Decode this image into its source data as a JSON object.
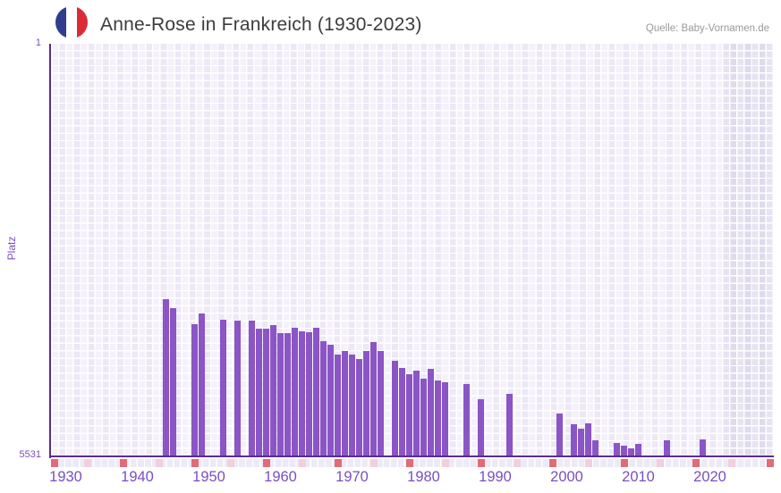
{
  "header": {
    "title": "Anne-Rose in Frankreich (1930-2023)",
    "source": "Quelle: Baby-Vornamen.de",
    "flag": {
      "blue": "#303d8d",
      "white": "#ffffff",
      "red": "#da2c35"
    }
  },
  "chart_data": {
    "type": "bar",
    "title": "Anne-Rose in Frankreich (1930-2023)",
    "xlabel": "",
    "ylabel": "Platz",
    "y_axis": {
      "top_tick": "1",
      "bottom_tick": "5531",
      "min": 1,
      "max": 5531,
      "inverted": true,
      "note": "rank 1 is best (top), 5531 worst (bottom)"
    },
    "x_ticks": [
      "1930",
      "1940",
      "1950",
      "1960",
      "1970",
      "1980",
      "1990",
      "2000",
      "2010",
      "2020"
    ],
    "x_tick_years": [
      1930,
      1940,
      1950,
      1960,
      1970,
      1980,
      1990,
      2000,
      2010,
      2020
    ],
    "xlim": [
      1928,
      2029
    ],
    "grid": true,
    "legend": false,
    "points": [
      {
        "year": 1944,
        "rank": 3424
      },
      {
        "year": 1945,
        "rank": 3544
      },
      {
        "year": 1948,
        "rank": 3759
      },
      {
        "year": 1949,
        "rank": 3616
      },
      {
        "year": 1952,
        "rank": 3700
      },
      {
        "year": 1954,
        "rank": 3712
      },
      {
        "year": 1956,
        "rank": 3706
      },
      {
        "year": 1957,
        "rank": 3819
      },
      {
        "year": 1958,
        "rank": 3819
      },
      {
        "year": 1959,
        "rank": 3777
      },
      {
        "year": 1960,
        "rank": 3879
      },
      {
        "year": 1961,
        "rank": 3885
      },
      {
        "year": 1962,
        "rank": 3807
      },
      {
        "year": 1963,
        "rank": 3855
      },
      {
        "year": 1964,
        "rank": 3867
      },
      {
        "year": 1965,
        "rank": 3807
      },
      {
        "year": 1966,
        "rank": 3986
      },
      {
        "year": 1967,
        "rank": 4034
      },
      {
        "year": 1968,
        "rank": 4166
      },
      {
        "year": 1969,
        "rank": 4118
      },
      {
        "year": 1970,
        "rank": 4166
      },
      {
        "year": 1971,
        "rank": 4226
      },
      {
        "year": 1972,
        "rank": 4118
      },
      {
        "year": 1973,
        "rank": 3998
      },
      {
        "year": 1974,
        "rank": 4118
      },
      {
        "year": 1976,
        "rank": 4250
      },
      {
        "year": 1977,
        "rank": 4346
      },
      {
        "year": 1978,
        "rank": 4430
      },
      {
        "year": 1979,
        "rank": 4382
      },
      {
        "year": 1980,
        "rank": 4490
      },
      {
        "year": 1981,
        "rank": 4358
      },
      {
        "year": 1982,
        "rank": 4513
      },
      {
        "year": 1983,
        "rank": 4537
      },
      {
        "year": 1986,
        "rank": 4561
      },
      {
        "year": 1988,
        "rank": 4765
      },
      {
        "year": 1992,
        "rank": 4693
      },
      {
        "year": 1999,
        "rank": 4956
      },
      {
        "year": 2001,
        "rank": 5100
      },
      {
        "year": 2002,
        "rank": 5160
      },
      {
        "year": 2003,
        "rank": 5088
      },
      {
        "year": 2004,
        "rank": 5315
      },
      {
        "year": 2007,
        "rank": 5351
      },
      {
        "year": 2008,
        "rank": 5387
      },
      {
        "year": 2009,
        "rank": 5423
      },
      {
        "year": 2010,
        "rank": 5363
      },
      {
        "year": 2014,
        "rank": 5315
      },
      {
        "year": 2019,
        "rank": 5303
      }
    ],
    "axis_markers": {
      "red_years": [
        1938,
        1948,
        1958,
        1968,
        1978,
        1988,
        1998,
        2008,
        2018
      ],
      "pink_years": [
        1933,
        1943,
        1953,
        1963,
        1973,
        1983,
        1993,
        2003,
        2013,
        2023
      ],
      "edge_cells_red": true
    },
    "recent_years_band": {
      "start_year": 2021.5,
      "to": "right edge"
    },
    "colors": {
      "bar": "#8b55c6",
      "axis_line": "#5c2b94",
      "axis_text": "#7a4ec1",
      "marker_red": "#e36a77",
      "marker_pink": "#f2cfdb",
      "plot_cell": "#ece8f6",
      "band_cell": "#e1ddee",
      "title_text": "#3c3c3c",
      "source_text": "#9a9a9a"
    }
  }
}
